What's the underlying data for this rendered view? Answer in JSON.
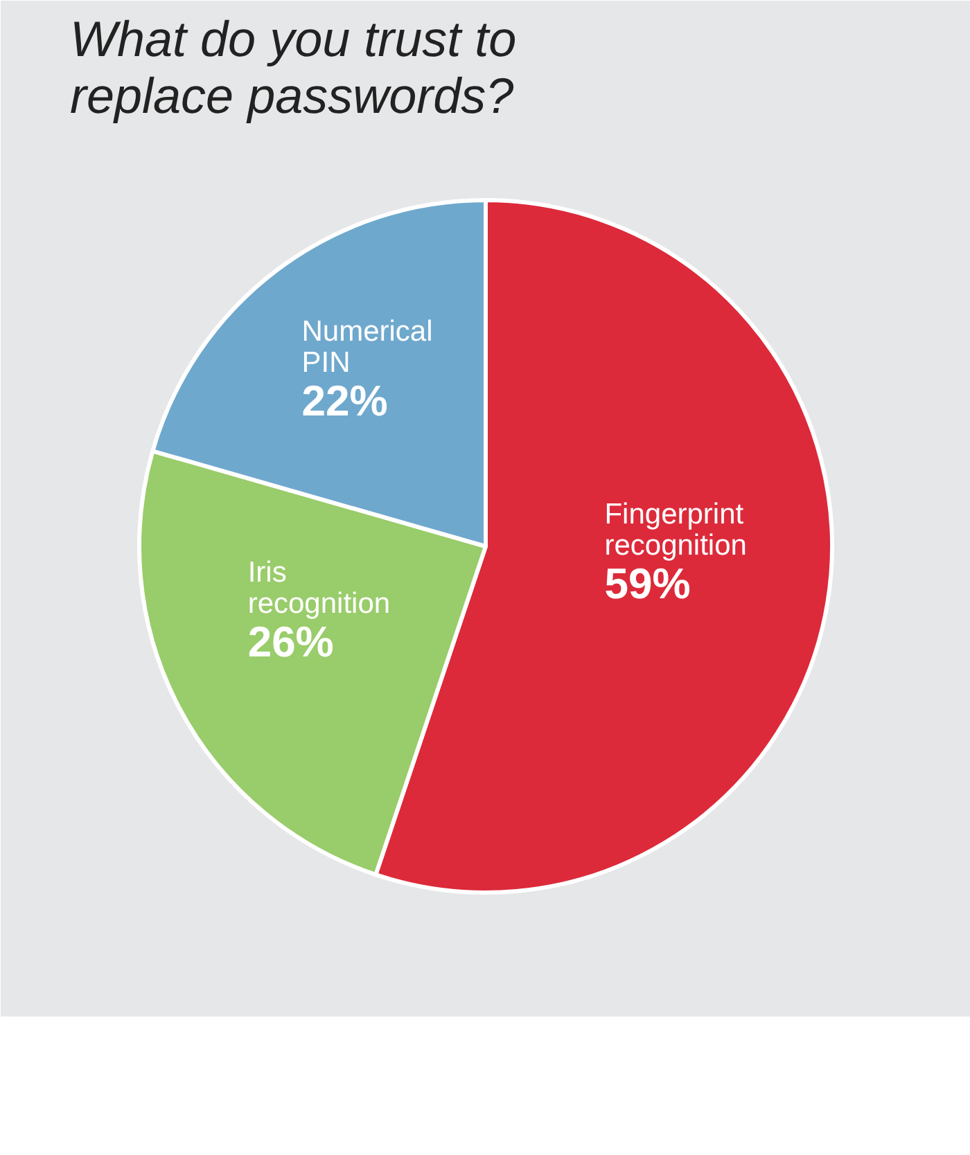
{
  "chart_data": {
    "type": "pie",
    "title": "What do you trust to replace passwords?",
    "categories": [
      "Fingerprint recognition",
      "Iris recognition",
      "Numerical PIN"
    ],
    "values": [
      59,
      26,
      22
    ],
    "value_labels": [
      "59%",
      "26%",
      "22%"
    ],
    "colors": [
      "#dc2a3a",
      "#99cc6a",
      "#6fa8cd"
    ]
  }
}
